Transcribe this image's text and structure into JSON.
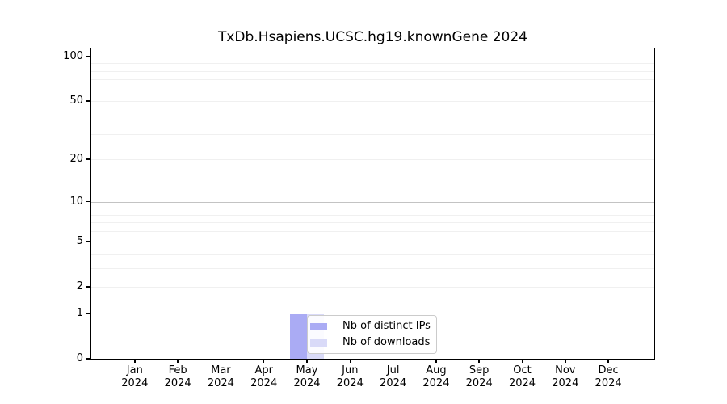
{
  "figure": {
    "background": "#ffffff"
  },
  "chart_data": {
    "type": "bar",
    "title": "TxDb.Hsapiens.UCSC.hg19.knownGene 2024",
    "categories": [
      "Jan 2024",
      "Feb 2024",
      "Mar 2024",
      "Apr 2024",
      "May 2024",
      "Jun 2024",
      "Jul 2024",
      "Aug 2024",
      "Sep 2024",
      "Oct 2024",
      "Nov 2024",
      "Dec 2024"
    ],
    "series": [
      {
        "name": "Nb of distinct IPs",
        "color": "#aaabf4",
        "values": [
          0,
          0,
          0,
          0,
          1,
          0,
          0,
          0,
          0,
          0,
          0,
          0
        ]
      },
      {
        "name": "Nb of downloads",
        "color": "#d9daf8",
        "values": [
          0,
          0,
          0,
          0,
          1,
          0,
          0,
          0,
          0,
          0,
          0,
          0
        ]
      }
    ],
    "xlabel": "",
    "ylabel": "",
    "yscale": "log1p",
    "ylim": [
      0,
      113
    ],
    "yticks": [
      0,
      1,
      2,
      5,
      10,
      20,
      50,
      100
    ],
    "grid_major": [
      1,
      10,
      100
    ],
    "grid_minor": [
      2,
      3,
      4,
      5,
      6,
      7,
      8,
      9,
      20,
      30,
      40,
      50,
      60,
      70,
      80,
      90
    ],
    "grid": "horizontal",
    "legend_position": "inside-bottom-center"
  }
}
